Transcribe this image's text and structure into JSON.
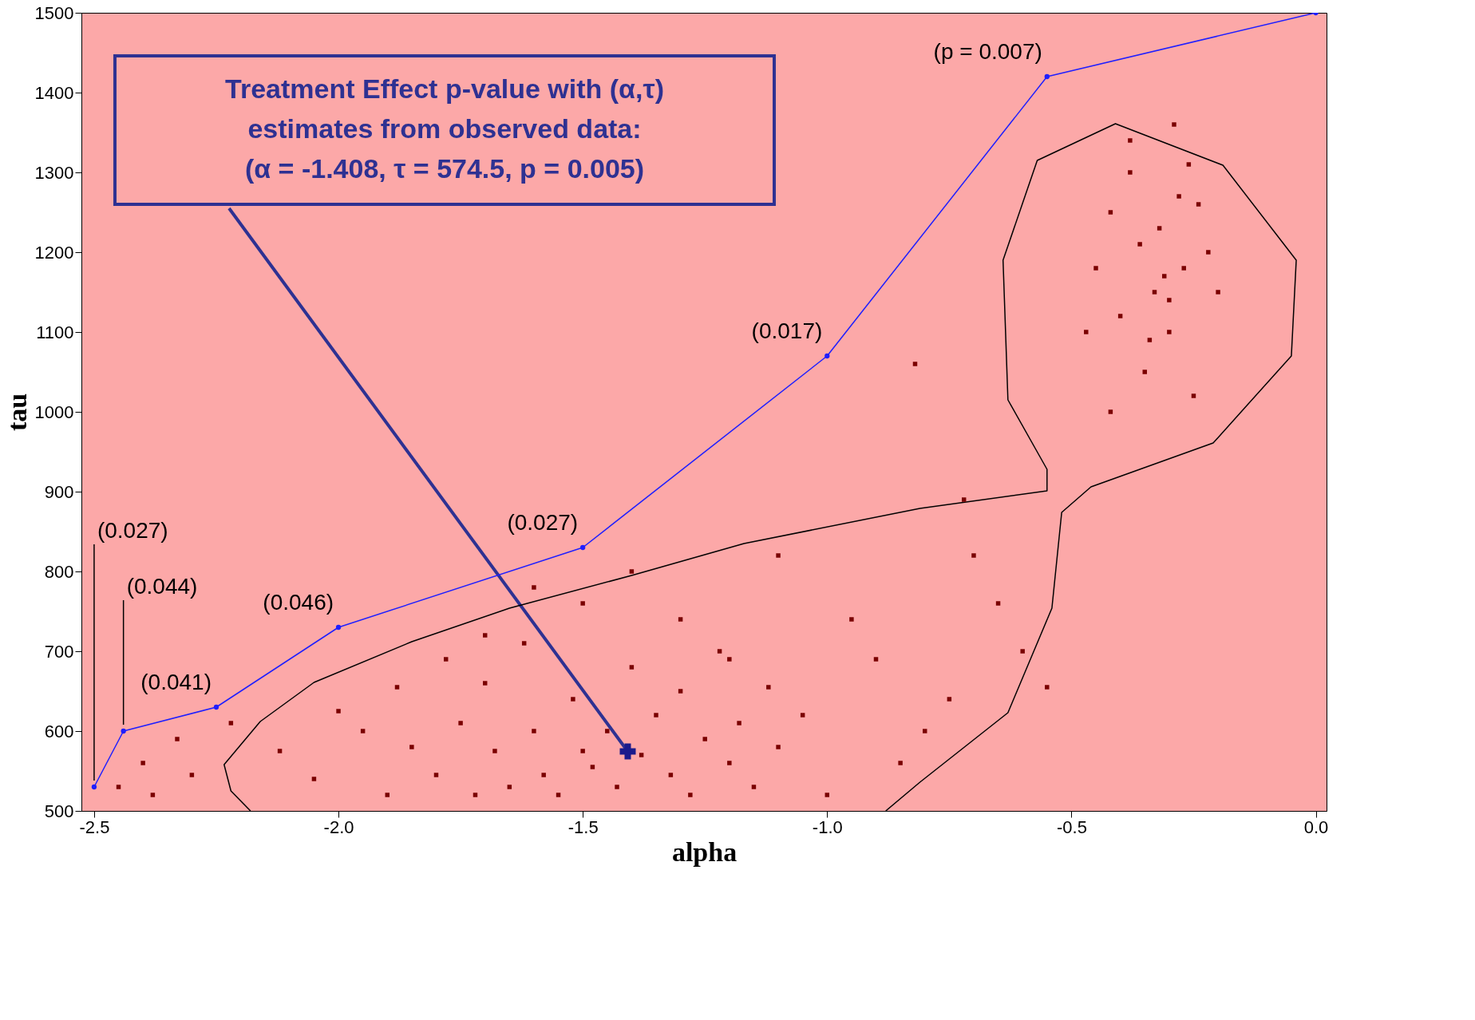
{
  "chart_data": {
    "type": "scatter",
    "xlabel": "alpha",
    "ylabel": "tau",
    "xlim": [
      -2.526,
      0.022
    ],
    "ylim": [
      500,
      1500
    ],
    "xticks": [
      {
        "value": -2.5,
        "label": "-2.5"
      },
      {
        "value": -2.0,
        "label": "-2.0"
      },
      {
        "value": -1.5,
        "label": "-1.5"
      },
      {
        "value": -1.0,
        "label": "-1.0"
      },
      {
        "value": -0.5,
        "label": "-0.5"
      },
      {
        "value": 0,
        "label": "0.0"
      }
    ],
    "yticks": [
      500,
      600,
      700,
      800,
      900,
      1000,
      1100,
      1200,
      1300,
      1400,
      1500
    ],
    "series": [
      {
        "type": "line",
        "color": "#000000",
        "marker": "none",
        "x": [
          -2.18,
          -2.22,
          -2.234,
          -2.16,
          -2.05,
          -1.85,
          -1.65,
          -1.4,
          -1.17,
          -0.81,
          -0.55,
          -0.55,
          -0.63,
          -0.64,
          -0.57,
          -0.41,
          -0.19,
          -0.04,
          -0.05,
          -0.21,
          -0.46,
          -0.52,
          -0.54,
          -0.63,
          -0.81,
          -0.88
        ],
        "values": [
          500,
          525,
          558,
          612,
          661,
          712,
          754,
          795,
          835,
          879,
          901,
          928,
          1015,
          1190,
          1315,
          1361,
          1309,
          1190,
          1070,
          961,
          906,
          874,
          754,
          623,
          536,
          500
        ]
      },
      {
        "color": "#7a0000",
        "marker": "square",
        "x": [
          -2.45,
          -2.4,
          -2.38,
          -2.33,
          -2.3,
          -2.22,
          -2.12,
          -2.05,
          -2.0,
          -1.95,
          -1.9,
          -1.88,
          -1.85,
          -1.8,
          -1.78,
          -1.75,
          -1.72,
          -1.7,
          -1.68,
          -1.65,
          -1.62,
          -1.6,
          -1.58,
          -1.55,
          -1.52,
          -1.5,
          -1.48,
          -1.45,
          -1.43,
          -1.4,
          -1.38,
          -1.35,
          -1.32,
          -1.3,
          -1.28,
          -1.25,
          -1.22,
          -1.2,
          -1.18,
          -1.15,
          -1.12,
          -1.1,
          -1.05,
          -1.0,
          -0.95,
          -0.9,
          -0.85,
          -0.8,
          -0.75,
          -0.7,
          -0.65,
          -0.6,
          -0.55,
          -1.5,
          -1.6,
          -1.7,
          -1.4,
          -1.3,
          -1.2,
          -1.1,
          -0.82,
          -0.72,
          -0.45,
          -0.42,
          -0.4,
          -0.38,
          -0.36,
          -0.35,
          -0.33,
          -0.32,
          -0.3,
          -0.28,
          -0.27,
          -0.25,
          -0.22,
          -0.2,
          -0.38,
          -0.34,
          -0.3,
          -0.26,
          -0.42,
          -0.31,
          -0.29,
          -0.47,
          -0.24
        ],
        "values": [
          530,
          560,
          520,
          590,
          545,
          610,
          575,
          540,
          625,
          600,
          520,
          655,
          580,
          545,
          690,
          610,
          520,
          660,
          575,
          530,
          710,
          600,
          545,
          520,
          640,
          575,
          555,
          600,
          530,
          680,
          570,
          620,
          545,
          650,
          520,
          590,
          700,
          560,
          610,
          530,
          655,
          580,
          620,
          520,
          740,
          690,
          560,
          600,
          640,
          820,
          760,
          700,
          655,
          760,
          780,
          720,
          800,
          740,
          690,
          820,
          1060,
          890,
          1180,
          1250,
          1120,
          1300,
          1210,
          1050,
          1150,
          1230,
          1100,
          1270,
          1180,
          1020,
          1200,
          1150,
          1340,
          1090,
          1140,
          1310,
          1000,
          1170,
          1360,
          1100,
          1260
        ]
      },
      {
        "type": "line",
        "color": "#1f1fff",
        "marker": "circle",
        "x": [
          -2.5,
          -2.44,
          -2.25,
          -2.0,
          -1.5,
          -1.0,
          -0.55,
          0
        ],
        "values": [
          530,
          600,
          630,
          730,
          830,
          1070,
          1420,
          1500
        ]
      },
      {
        "color": "#1a1a8c",
        "marker": "cross",
        "x": [
          -1.408
        ],
        "values": [
          574.5
        ]
      }
    ],
    "annotations": [
      {
        "text": "(0.027)",
        "x": -2.5,
        "y": 530
      },
      {
        "text": "(0.044)",
        "x": -2.44,
        "y": 600
      },
      {
        "text": "(0.041)",
        "x": -2.25,
        "y": 630
      },
      {
        "text": "(0.046)",
        "x": -2.0,
        "y": 730
      },
      {
        "text": "(0.027)",
        "x": -1.5,
        "y": 830
      },
      {
        "text": "(0.017)",
        "x": -1.0,
        "y": 1070
      },
      {
        "text": "(p = 0.007)",
        "x": -0.55,
        "y": 1420
      },
      {
        "text": "Treatment Effect p-value with (α,τ)\nestimates from observed data:\n(α = -1.408, τ = 574.5, p = 0.005)",
        "x": -1.408,
        "y": 574.5
      }
    ]
  }
}
